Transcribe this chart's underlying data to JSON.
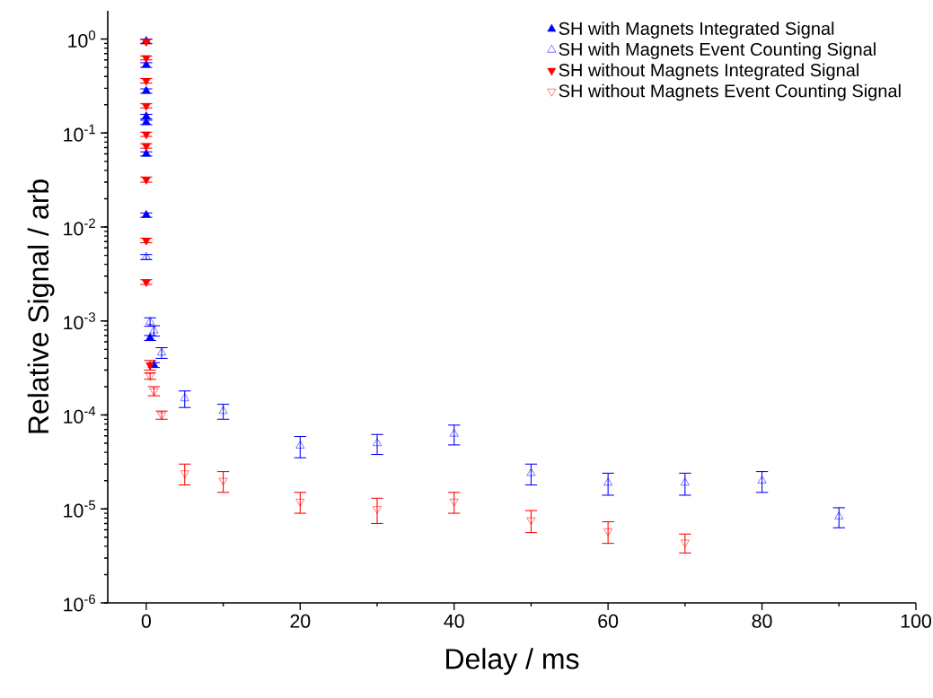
{
  "chart_data": {
    "type": "scatter",
    "xlabel": "Delay / ms",
    "ylabel": "Relative Signal / arb",
    "log": "y",
    "xlim": [
      -5,
      100
    ],
    "xticks": [
      0,
      20,
      40,
      60,
      80,
      100
    ],
    "ylim": [
      1e-06,
      2
    ],
    "yticks": [
      {
        "value": 1e-06,
        "label": "10$^{-6}$"
      },
      {
        "value": 1e-05,
        "label": "10$^{-5}$"
      },
      {
        "value": 0.0001,
        "label": "10$^{-4}$"
      },
      {
        "value": 0.001,
        "label": "10$^{-3}$"
      },
      {
        "value": 0.01,
        "label": "10$^{-2}$"
      },
      {
        "value": 0.1,
        "label": "10$^{-1}$"
      },
      {
        "value": 1,
        "label": "10$^{0}$"
      }
    ],
    "grid": false,
    "legend": "top right",
    "series": [
      {
        "name": "SH with Magnets Integrated Signal",
        "color": "#0000ff",
        "marker": "triangle",
        "x": [
          0,
          0,
          0,
          0,
          0,
          0,
          0,
          0.5,
          1
        ],
        "values": [
          0.95,
          0.53,
          0.28,
          0.15,
          0.13,
          0.06,
          0.0134,
          0.00066,
          0.00034
        ],
        "errors": [
          0.05,
          0.03,
          0.015,
          0.008,
          0.007,
          0.003,
          0.0007,
          4e-05,
          2e-05
        ]
      },
      {
        "name": "SH with Magnets Event Counting Signal",
        "color": "#0000ff",
        "marker": "triangle-open",
        "x": [
          0,
          0.5,
          1,
          2,
          5,
          10,
          20,
          30,
          40,
          50,
          60,
          70,
          80,
          90
        ],
        "values": [
          0.0048,
          0.00098,
          0.00079,
          0.00046,
          0.00015,
          0.00011,
          4.7e-05,
          5e-05,
          6.3e-05,
          2.4e-05,
          1.9e-05,
          1.9e-05,
          2e-05,
          8.3e-06
        ],
        "errors": [
          0.0003,
          0.0001,
          0.0001,
          6e-05,
          3e-05,
          2e-05,
          1.2e-05,
          1.2e-05,
          1.5e-05,
          6e-06,
          5e-06,
          5e-06,
          5e-06,
          2e-06
        ]
      },
      {
        "name": "SH without Magnets Integrated Signal",
        "color": "#ff0000",
        "marker": "triangle-down",
        "x": [
          0,
          0,
          0,
          0,
          0,
          0,
          0,
          0,
          0,
          0.5
        ],
        "values": [
          0.94,
          0.63,
          0.36,
          0.195,
          0.097,
          0.073,
          0.032,
          0.0072,
          0.0026,
          0.00034
        ],
        "errors": [
          0.05,
          0.03,
          0.02,
          0.01,
          0.005,
          0.004,
          0.002,
          0.0004,
          0.00015,
          4e-05
        ]
      },
      {
        "name": "SH without Magnets Event Counting Signal",
        "color": "#ff0000",
        "marker": "triangle-down-open",
        "x": [
          0.5,
          1,
          2,
          5,
          10,
          20,
          30,
          40,
          50,
          60,
          70
        ],
        "values": [
          0.00026,
          0.00018,
          0.0001,
          2.4e-05,
          2e-05,
          1.2e-05,
          1e-05,
          1.2e-05,
          7.6e-06,
          5.8e-06,
          4.4e-06
        ],
        "errors": [
          2e-05,
          2e-05,
          1e-05,
          6e-06,
          5e-06,
          3e-06,
          3e-06,
          3e-06,
          2e-06,
          1.5e-06,
          1e-06
        ]
      }
    ]
  }
}
